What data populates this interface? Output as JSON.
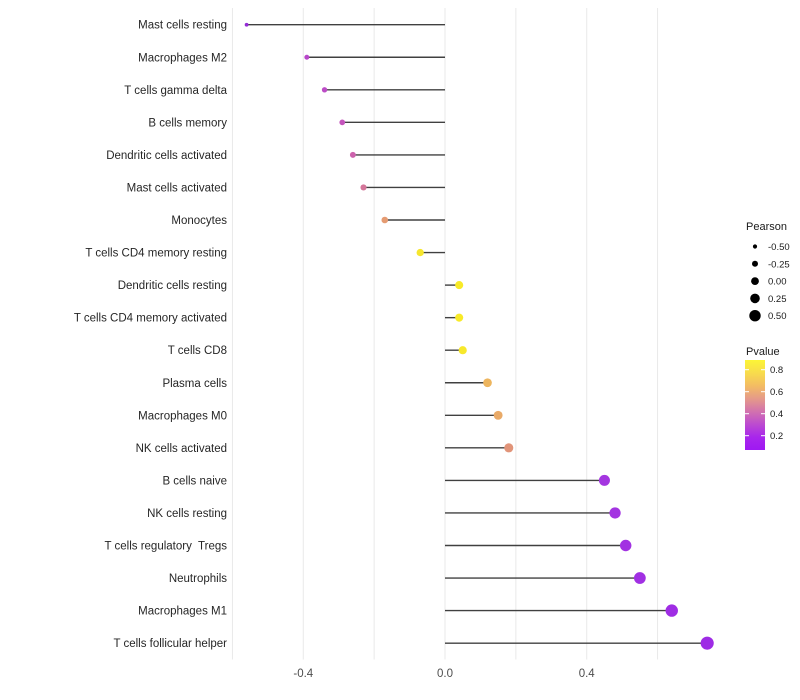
{
  "chart_data": {
    "type": "lollipop",
    "title": "",
    "xlabel": "",
    "ylabel": "",
    "grid": "vertical-only",
    "legend_position": "right",
    "x_axis": {
      "tick_labels": [
        "-0.4",
        "0.0",
        "0.4"
      ],
      "tick_values": [
        -0.4,
        0.0,
        0.4
      ],
      "gridline_values": [
        -0.6,
        -0.4,
        -0.2,
        0.0,
        0.2,
        0.4,
        0.6
      ],
      "range": [
        -0.63,
        0.8
      ],
      "baseline": 0.0
    },
    "points": [
      {
        "label": "Mast cells resting",
        "pearson": -0.56,
        "pvalue_approx": 0.08,
        "color": "#942BD6"
      },
      {
        "label": "Macrophages M2",
        "pearson": -0.39,
        "pvalue_approx": 0.24,
        "color": "#B847CA"
      },
      {
        "label": "T cells gamma delta",
        "pearson": -0.34,
        "pvalue_approx": 0.28,
        "color": "#BC4CC6"
      },
      {
        "label": "B cells memory",
        "pearson": -0.29,
        "pvalue_approx": 0.33,
        "color": "#C455BC"
      },
      {
        "label": "Dendritic cells activated",
        "pearson": -0.26,
        "pvalue_approx": 0.38,
        "color": "#CC62AC"
      },
      {
        "label": "Mast cells activated",
        "pearson": -0.23,
        "pvalue_approx": 0.43,
        "color": "#D4769A"
      },
      {
        "label": "Monocytes",
        "pearson": -0.17,
        "pvalue_approx": 0.55,
        "color": "#E59B72"
      },
      {
        "label": "T cells CD4 memory resting",
        "pearson": -0.07,
        "pvalue_approx": 0.82,
        "color": "#F6E62E"
      },
      {
        "label": "Dendritic cells resting",
        "pearson": 0.04,
        "pvalue_approx": 0.85,
        "color": "#F8EA28"
      },
      {
        "label": "T cells CD4 memory activated",
        "pearson": 0.04,
        "pvalue_approx": 0.85,
        "color": "#F8EA28"
      },
      {
        "label": "T cells CD8",
        "pearson": 0.05,
        "pvalue_approx": 0.84,
        "color": "#F7E82B"
      },
      {
        "label": "Plasma cells",
        "pearson": 0.12,
        "pvalue_approx": 0.63,
        "color": "#EDB55E"
      },
      {
        "label": "Macrophages M0",
        "pearson": 0.15,
        "pvalue_approx": 0.58,
        "color": "#E9AA68"
      },
      {
        "label": "NK cells activated",
        "pearson": 0.18,
        "pvalue_approx": 0.51,
        "color": "#E19479"
      },
      {
        "label": "B cells naive",
        "pearson": 0.45,
        "pvalue_approx": 0.12,
        "color": "#A436E0"
      },
      {
        "label": "NK cells resting",
        "pearson": 0.48,
        "pvalue_approx": 0.11,
        "color": "#A334E1"
      },
      {
        "label": "T cells regulatory  Tregs",
        "pearson": 0.51,
        "pvalue_approx": 0.1,
        "color": "#A232E2"
      },
      {
        "label": "Neutrophils",
        "pearson": 0.55,
        "pvalue_approx": 0.09,
        "color": "#A130E3"
      },
      {
        "label": "Macrophages M1",
        "pearson": 0.64,
        "pvalue_approx": 0.08,
        "color": "#9F2DE4"
      },
      {
        "label": "T cells follicular helper",
        "pearson": 0.74,
        "pvalue_approx": 0.07,
        "color": "#9E2BE5"
      }
    ],
    "legends": {
      "size": {
        "title": "Pearson",
        "entries": [
          {
            "label": "-0.50",
            "value": -0.5
          },
          {
            "label": "-0.25",
            "value": -0.25
          },
          {
            "label": "0.00",
            "value": 0.0
          },
          {
            "label": "0.25",
            "value": 0.25
          },
          {
            "label": "0.50",
            "value": 0.5
          }
        ]
      },
      "color": {
        "title": "Pvalue",
        "tick_labels": [
          "0.8",
          "0.6",
          "0.4",
          "0.2"
        ],
        "tick_values": [
          0.8,
          0.6,
          0.4,
          0.2
        ],
        "range_bottom_to_top": [
          0.07,
          0.89
        ],
        "gradient_top_to_bottom": [
          "#FCF536",
          "#F8DC4C",
          "#F3BC63",
          "#E59A89",
          "#D272AE",
          "#BC4BD0",
          "#A826EC",
          "#9F19F2"
        ]
      }
    },
    "colors": {
      "background": "#FFFFFF",
      "stem": "#404040",
      "gridline": "#E9E9E9",
      "axis_tick_text": "#4D4D4D",
      "category_label_text": "#262626",
      "legend_dot": "#000000",
      "legend_text": "#1A1A1A"
    }
  }
}
